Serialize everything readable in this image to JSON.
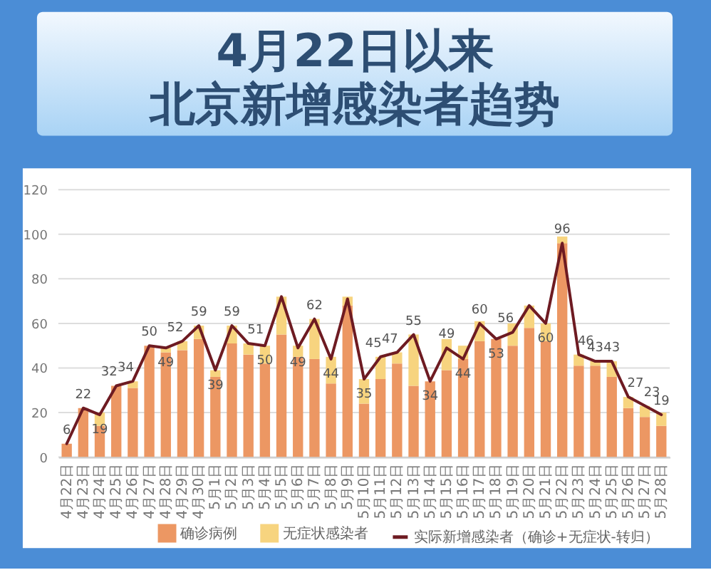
{
  "chart_data": {
    "type": "bar",
    "title": "4月22日以来",
    "subtitle": "北京新增感染者趋势",
    "categories": [
      "4月22日",
      "4月23日",
      "4月24日",
      "4月25日",
      "4月26日",
      "4月27日",
      "4月28日",
      "4月29日",
      "4月30日",
      "5月1日",
      "5月2日",
      "5月3日",
      "5月4日",
      "5月5日",
      "5月6日",
      "5月7日",
      "5月8日",
      "5月9日",
      "5月10日",
      "5月11日",
      "5月12日",
      "5月13日",
      "5月14日",
      "5月15日",
      "5月16日",
      "5月17日",
      "5月18日",
      "5月19日",
      "5月20日",
      "5月21日",
      "5月22日",
      "5月23日",
      "5月24日",
      "5月25日",
      "5月26日",
      "5月27日",
      "5月28日"
    ],
    "stacked": true,
    "series": [
      {
        "name": "确诊病例",
        "color": "#ec9763",
        "values": [
          6,
          22,
          14,
          32,
          31,
          50,
          47,
          48,
          53,
          36,
          51,
          46,
          42,
          55,
          45,
          44,
          33,
          68,
          24,
          35,
          42,
          32,
          34,
          39,
          44,
          52,
          53,
          50,
          58,
          52,
          96,
          41,
          41,
          36,
          22,
          18,
          14
        ]
      },
      {
        "name": "无症状感染者",
        "color": "#f7d47f",
        "values": [
          0,
          0,
          6,
          0,
          3,
          0,
          2,
          4,
          6,
          3,
          8,
          5,
          8,
          17,
          5,
          18,
          12,
          4,
          11,
          10,
          5,
          23,
          0,
          14,
          6,
          9,
          0,
          10,
          10,
          8,
          3,
          5,
          2,
          7,
          5,
          5,
          6
        ]
      },
      {
        "name": "实际新增感染者（确诊+无症状-转归）",
        "type": "line",
        "color": "#6e1b22",
        "values": [
          6,
          22,
          19,
          32,
          34,
          50,
          49,
          52,
          59,
          39,
          59,
          51,
          50,
          72,
          49,
          62,
          44,
          71,
          35,
          45,
          47,
          55,
          34,
          49,
          44,
          60,
          53,
          56,
          68,
          60,
          96,
          46,
          43,
          43,
          27,
          23,
          19
        ],
        "value_labels": [
          "6",
          "22",
          "19",
          "32",
          "34",
          "50",
          "49",
          "52",
          "59",
          "39",
          "59",
          "51",
          "50",
          null,
          "49",
          "62",
          "44",
          null,
          "35",
          "45",
          "47",
          "55",
          "34",
          "49",
          "44",
          "60",
          "53",
          "56",
          null,
          "60",
          "96",
          "46",
          "43",
          "43",
          "27",
          "23",
          "19"
        ]
      }
    ],
    "ylim": [
      0,
      120
    ],
    "yticks": [
      0,
      20,
      40,
      60,
      80,
      100,
      120
    ],
    "grid": "y",
    "legend": "bottom"
  }
}
